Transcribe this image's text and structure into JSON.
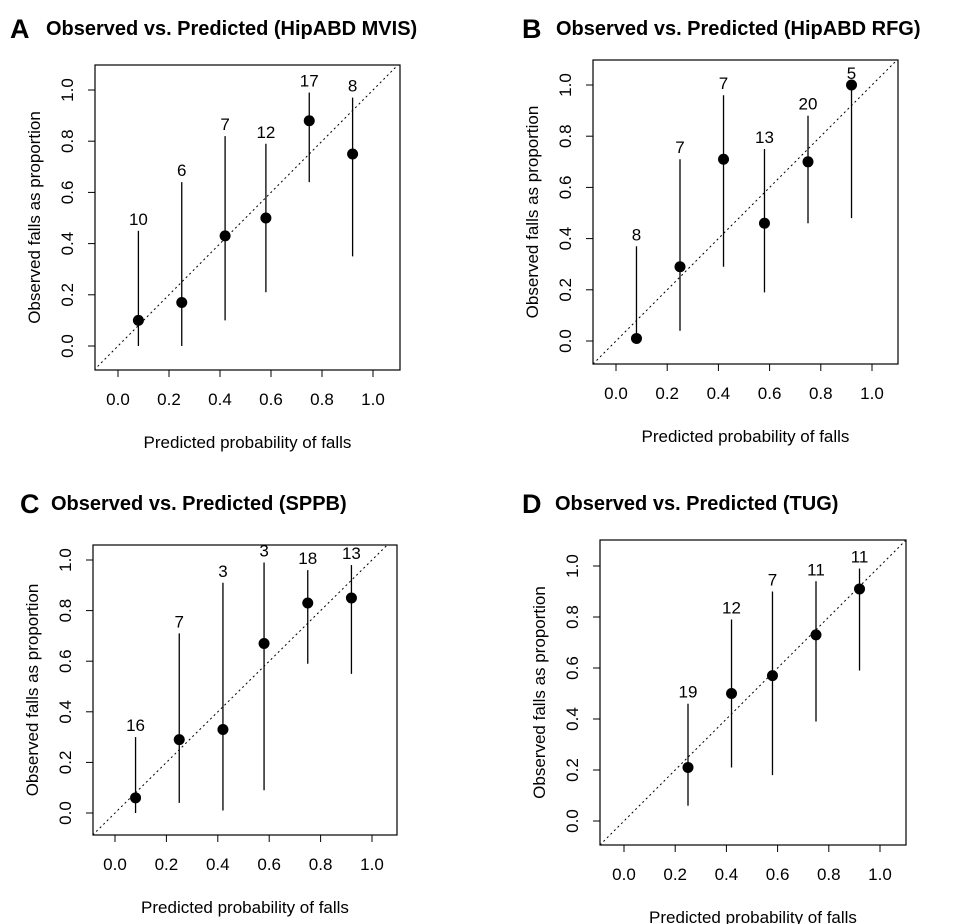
{
  "chart_data": [
    {
      "type": "scatter",
      "panel": "A",
      "title": "Observed vs. Predicted (HipABD MVIS)",
      "xlabel": "Predicted probability of falls",
      "ylabel": "Observed falls as proportion",
      "xlim": [
        0.0,
        1.0
      ],
      "ylim": [
        0.0,
        1.0
      ],
      "x_ticks": [
        "0.0",
        "0.2",
        "0.4",
        "0.6",
        "0.8",
        "1.0"
      ],
      "y_ticks": [
        "0.0",
        "0.2",
        "0.4",
        "0.6",
        "0.8",
        "1.0"
      ],
      "reference_line": "dotted diagonal y = x",
      "points": [
        {
          "x": 0.08,
          "y": 0.1,
          "lower": 0.0,
          "upper": 0.45,
          "n": "10"
        },
        {
          "x": 0.25,
          "y": 0.17,
          "lower": 0.0,
          "upper": 0.64,
          "n": "6"
        },
        {
          "x": 0.42,
          "y": 0.43,
          "lower": 0.1,
          "upper": 0.82,
          "n": "7"
        },
        {
          "x": 0.58,
          "y": 0.5,
          "lower": 0.21,
          "upper": 0.79,
          "n": "12"
        },
        {
          "x": 0.75,
          "y": 0.88,
          "lower": 0.64,
          "upper": 0.99,
          "n": "17"
        },
        {
          "x": 0.92,
          "y": 0.75,
          "lower": 0.35,
          "upper": 0.97,
          "n": "8"
        }
      ]
    },
    {
      "type": "scatter",
      "panel": "B",
      "title": "Observed vs. Predicted (HipABD RFG)",
      "xlabel": "Predicted probability of falls",
      "ylabel": "Observed falls as proportion",
      "xlim": [
        0.0,
        1.0
      ],
      "ylim": [
        0.0,
        1.0
      ],
      "x_ticks": [
        "0.0",
        "0.2",
        "0.4",
        "0.6",
        "0.8",
        "1.0"
      ],
      "y_ticks": [
        "0.0",
        "0.2",
        "0.4",
        "0.6",
        "0.8",
        "1.0"
      ],
      "reference_line": "dotted diagonal y = x",
      "points": [
        {
          "x": 0.08,
          "y": 0.01,
          "lower": 0.0,
          "upper": 0.37,
          "n": "8"
        },
        {
          "x": 0.25,
          "y": 0.29,
          "lower": 0.04,
          "upper": 0.71,
          "n": "7"
        },
        {
          "x": 0.42,
          "y": 0.71,
          "lower": 0.29,
          "upper": 0.96,
          "n": "7"
        },
        {
          "x": 0.58,
          "y": 0.46,
          "lower": 0.19,
          "upper": 0.75,
          "n": "13"
        },
        {
          "x": 0.75,
          "y": 0.7,
          "lower": 0.46,
          "upper": 0.88,
          "n": "20"
        },
        {
          "x": 0.92,
          "y": 1.0,
          "lower": 0.48,
          "upper": 1.0,
          "n": "5"
        }
      ]
    },
    {
      "type": "scatter",
      "panel": "C",
      "title": "Observed vs. Predicted (SPPB)",
      "xlabel": "Predicted probability of falls",
      "ylabel": "Observed falls as proportion",
      "xlim": [
        0.0,
        1.0
      ],
      "ylim": [
        0.0,
        1.0
      ],
      "x_ticks": [
        "0.0",
        "0.2",
        "0.4",
        "0.6",
        "0.8",
        "1.0"
      ],
      "y_ticks": [
        "0.0",
        "0.2",
        "0.4",
        "0.6",
        "0.8",
        "1.0"
      ],
      "reference_line": "dotted diagonal y = x",
      "points": [
        {
          "x": 0.08,
          "y": 0.06,
          "lower": 0.0,
          "upper": 0.3,
          "n": "16"
        },
        {
          "x": 0.25,
          "y": 0.29,
          "lower": 0.04,
          "upper": 0.71,
          "n": "7"
        },
        {
          "x": 0.42,
          "y": 0.33,
          "lower": 0.01,
          "upper": 0.91,
          "n": "3"
        },
        {
          "x": 0.58,
          "y": 0.67,
          "lower": 0.09,
          "upper": 0.99,
          "n": "3"
        },
        {
          "x": 0.75,
          "y": 0.83,
          "lower": 0.59,
          "upper": 0.96,
          "n": "18"
        },
        {
          "x": 0.92,
          "y": 0.85,
          "lower": 0.55,
          "upper": 0.98,
          "n": "13"
        }
      ]
    },
    {
      "type": "scatter",
      "panel": "D",
      "title": "Observed vs. Predicted (TUG)",
      "xlabel": "Predicted probability of falls",
      "ylabel": "Observed falls as proportion",
      "xlim": [
        0.0,
        1.0
      ],
      "ylim": [
        0.0,
        1.0
      ],
      "x_ticks": [
        "0.0",
        "0.2",
        "0.4",
        "0.6",
        "0.8",
        "1.0"
      ],
      "y_ticks": [
        "0.0",
        "0.2",
        "0.4",
        "0.6",
        "0.8",
        "1.0"
      ],
      "reference_line": "dotted diagonal y = x",
      "points": [
        {
          "x": 0.25,
          "y": 0.21,
          "lower": 0.06,
          "upper": 0.46,
          "n": "19"
        },
        {
          "x": 0.42,
          "y": 0.5,
          "lower": 0.21,
          "upper": 0.79,
          "n": "12"
        },
        {
          "x": 0.58,
          "y": 0.57,
          "lower": 0.18,
          "upper": 0.9,
          "n": "7"
        },
        {
          "x": 0.75,
          "y": 0.73,
          "lower": 0.39,
          "upper": 0.94,
          "n": "11"
        },
        {
          "x": 0.92,
          "y": 0.91,
          "lower": 0.59,
          "upper": 0.99,
          "n": "11"
        }
      ]
    }
  ]
}
